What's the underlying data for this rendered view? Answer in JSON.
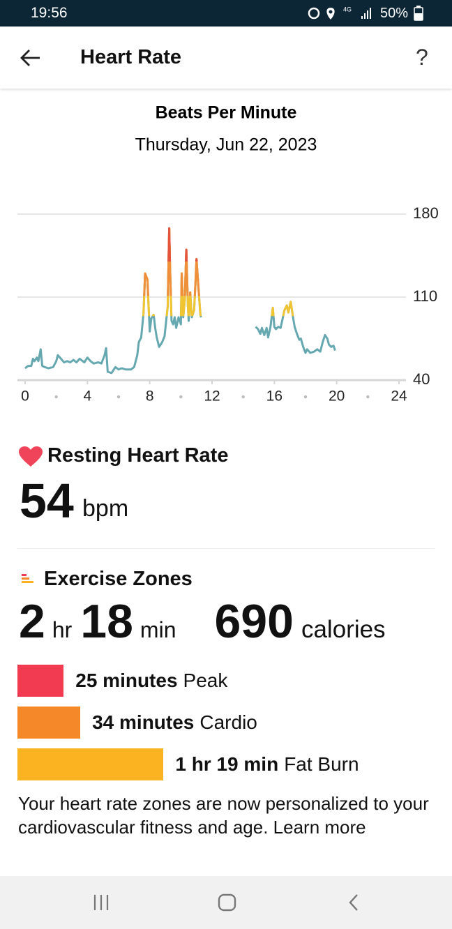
{
  "status_bar": {
    "time": "19:56",
    "network": "4G",
    "battery": "50%"
  },
  "header": {
    "title": "Heart Rate",
    "help": "?"
  },
  "chart_data": {
    "type": "line",
    "title": "Beats Per Minute",
    "subtitle": "Thursday, Jun 22, 2023",
    "x": [
      0,
      0.2,
      0.4,
      0.5,
      0.6,
      0.75,
      0.85,
      1.0,
      1.1,
      1.25,
      1.5,
      1.8,
      2.0,
      2.1,
      2.3,
      2.5,
      2.7,
      2.9,
      3.1,
      3.3,
      3.5,
      3.8,
      4.0,
      4.2,
      4.4,
      4.7,
      4.9,
      5.1,
      5.2,
      5.3,
      5.55,
      5.8,
      6.0,
      6.2,
      6.45,
      6.8,
      7.0,
      7.2,
      7.3,
      7.45,
      7.6,
      7.7,
      7.85,
      7.95,
      8.0,
      8.1,
      8.25,
      8.35,
      8.45,
      8.6,
      8.8,
      8.95,
      9.15,
      9.25,
      9.3,
      9.4,
      9.5,
      9.6,
      9.7,
      9.85,
      10.0,
      10.05,
      10.15,
      10.25,
      10.35,
      10.45,
      10.5,
      10.6,
      10.7,
      10.85,
      10.95,
      11.0,
      11.15,
      11.25,
      11.3,
      13,
      14.8,
      14.95,
      15.1,
      15.2,
      15.35,
      15.5,
      15.6,
      15.75,
      15.9,
      16.0,
      16.1,
      16.25,
      16.4,
      16.5,
      16.65,
      16.8,
      16.9,
      17.05,
      17.2,
      17.3,
      17.45,
      17.6,
      17.7,
      17.85,
      18.0,
      18.1,
      18.3,
      18.55,
      18.75,
      18.95,
      19.1,
      19.25,
      19.4,
      19.5,
      19.65,
      19.8,
      19.9
    ],
    "values": [
      50,
      52,
      52,
      58,
      56,
      59,
      56,
      66,
      52,
      51,
      50,
      51,
      56,
      61,
      58,
      55,
      56,
      55,
      57,
      55,
      58,
      55,
      59,
      56,
      54,
      55,
      54,
      61,
      67,
      47,
      46,
      51,
      49,
      50,
      49,
      49,
      51,
      61,
      72,
      76,
      96,
      130,
      125,
      96,
      81,
      92,
      95,
      84,
      76,
      68,
      72,
      77,
      102,
      168,
      137,
      90,
      87,
      93,
      84,
      93,
      87,
      130,
      93,
      108,
      150,
      102,
      90,
      114,
      93,
      99,
      125,
      142,
      114,
      95,
      93,
      null,
      85,
      83,
      79,
      84,
      78,
      84,
      76,
      85,
      101,
      85,
      83,
      85,
      84,
      90,
      99,
      103,
      97,
      106,
      93,
      85,
      79,
      74,
      75,
      68,
      63,
      66,
      63,
      64,
      66,
      64,
      72,
      78,
      75,
      70,
      68,
      69,
      65
    ],
    "color": "#65a8b0",
    "zones": [
      {
        "from": 94,
        "color": "#f0c531"
      },
      {
        "from": 111,
        "color": "#ef8f3a"
      },
      {
        "from": 140,
        "color": "#e5533d"
      }
    ],
    "xlim": [
      0,
      24
    ],
    "ylim": [
      40,
      180
    ],
    "xticks": [
      0,
      4,
      8,
      12,
      16,
      20,
      24
    ],
    "xminorticks": [
      2,
      6,
      10,
      14,
      18,
      22
    ],
    "yticks": [
      40,
      110,
      180
    ],
    "grid": true
  },
  "resting": {
    "title": "Resting Heart Rate",
    "value": "54",
    "unit": "bpm"
  },
  "exercise": {
    "title": "Exercise Zones",
    "summary": {
      "hours": "2",
      "hours_unit": "hr",
      "minutes": "18",
      "minutes_unit": "min",
      "calories": "690",
      "calories_unit": "calories"
    },
    "zones": [
      {
        "name": "Peak",
        "minutes": 25,
        "label": "25 minutes",
        "color": "#f23a50"
      },
      {
        "name": "Cardio",
        "minutes": 34,
        "label": "34 minutes",
        "color": "#f5892a"
      },
      {
        "name": "Fat Burn",
        "minutes": 79,
        "label": "1 hr 19 min",
        "color": "#fbb322"
      }
    ]
  },
  "note": {
    "text": "Your heart rate zones are now personalized to your cardiovascular fitness and age.",
    "link": "Learn more"
  }
}
